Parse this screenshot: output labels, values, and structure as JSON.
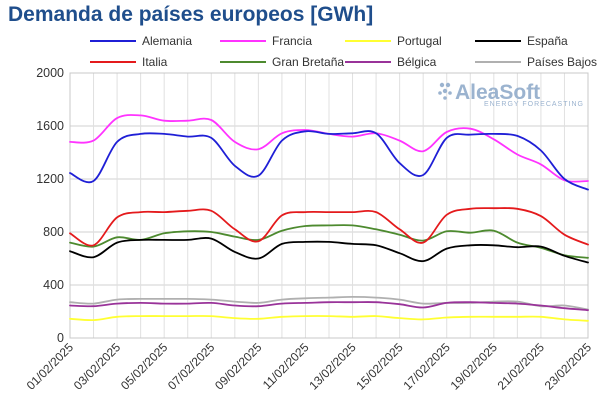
{
  "title": "Demanda de países europeos [GWh]",
  "logo": {
    "name": "AleaSoft",
    "tagline": "ENERGY FORECASTING"
  },
  "chart_data": {
    "type": "line",
    "title": "Demanda de países europeos [GWh]",
    "xlabel": "",
    "ylabel": "",
    "ylim": [
      0,
      2000
    ],
    "yticks": [
      0,
      400,
      800,
      1200,
      1600,
      2000
    ],
    "grid": true,
    "legend_position": "top",
    "x": [
      "01/02/2025",
      "02/02/2025",
      "03/02/2025",
      "04/02/2025",
      "05/02/2025",
      "06/02/2025",
      "07/02/2025",
      "08/02/2025",
      "09/02/2025",
      "10/02/2025",
      "11/02/2025",
      "12/02/2025",
      "13/02/2025",
      "14/02/2025",
      "15/02/2025",
      "16/02/2025",
      "17/02/2025",
      "18/02/2025",
      "19/02/2025",
      "20/02/2025",
      "21/02/2025",
      "22/02/2025",
      "23/02/2025"
    ],
    "xtick_labels": [
      "01/02/2025",
      "03/02/2025",
      "05/02/2025",
      "07/02/2025",
      "09/02/2025",
      "11/02/2025",
      "13/02/2025",
      "15/02/2025",
      "17/02/2025",
      "19/02/2025",
      "21/02/2025",
      "23/02/2025"
    ],
    "series": [
      {
        "name": "Alemania",
        "color": "#1f1fd6",
        "values": [
          1245,
          1185,
          1480,
          1540,
          1540,
          1520,
          1510,
          1300,
          1225,
          1490,
          1560,
          1540,
          1545,
          1545,
          1320,
          1230,
          1510,
          1535,
          1540,
          1525,
          1415,
          1200,
          1120
        ]
      },
      {
        "name": "Francia",
        "color": "#ff33ff",
        "values": [
          1480,
          1490,
          1660,
          1680,
          1640,
          1640,
          1645,
          1480,
          1425,
          1545,
          1570,
          1540,
          1520,
          1545,
          1490,
          1410,
          1555,
          1580,
          1500,
          1385,
          1310,
          1190,
          1185
        ]
      },
      {
        "name": "Portugal",
        "color": "#ffff33",
        "values": [
          145,
          135,
          160,
          165,
          165,
          165,
          165,
          150,
          145,
          160,
          165,
          165,
          160,
          165,
          150,
          140,
          155,
          160,
          160,
          160,
          160,
          140,
          130
        ]
      },
      {
        "name": "España",
        "color": "#000000",
        "values": [
          655,
          610,
          720,
          740,
          740,
          740,
          750,
          650,
          600,
          710,
          725,
          725,
          710,
          700,
          640,
          580,
          675,
          700,
          700,
          685,
          690,
          620,
          570
        ]
      },
      {
        "name": "Italia",
        "color": "#e41a1c",
        "values": [
          790,
          700,
          910,
          950,
          950,
          960,
          960,
          820,
          730,
          925,
          950,
          950,
          950,
          950,
          820,
          720,
          930,
          975,
          980,
          975,
          920,
          780,
          705
        ]
      },
      {
        "name": "Gran Bretaña",
        "color": "#4d8a2f",
        "values": [
          720,
          690,
          760,
          740,
          790,
          805,
          800,
          765,
          740,
          810,
          845,
          850,
          850,
          820,
          780,
          735,
          805,
          795,
          810,
          720,
          680,
          625,
          605
        ]
      },
      {
        "name": "Bélgica",
        "color": "#993399",
        "values": [
          245,
          240,
          260,
          265,
          260,
          260,
          265,
          245,
          240,
          260,
          265,
          270,
          270,
          270,
          255,
          230,
          265,
          270,
          265,
          260,
          245,
          225,
          210
        ]
      },
      {
        "name": "Países Bajos",
        "color": "#b0b0b0",
        "values": [
          270,
          260,
          290,
          295,
          295,
          295,
          290,
          275,
          265,
          290,
          300,
          305,
          310,
          305,
          290,
          260,
          265,
          265,
          275,
          275,
          240,
          245,
          215
        ]
      }
    ]
  }
}
